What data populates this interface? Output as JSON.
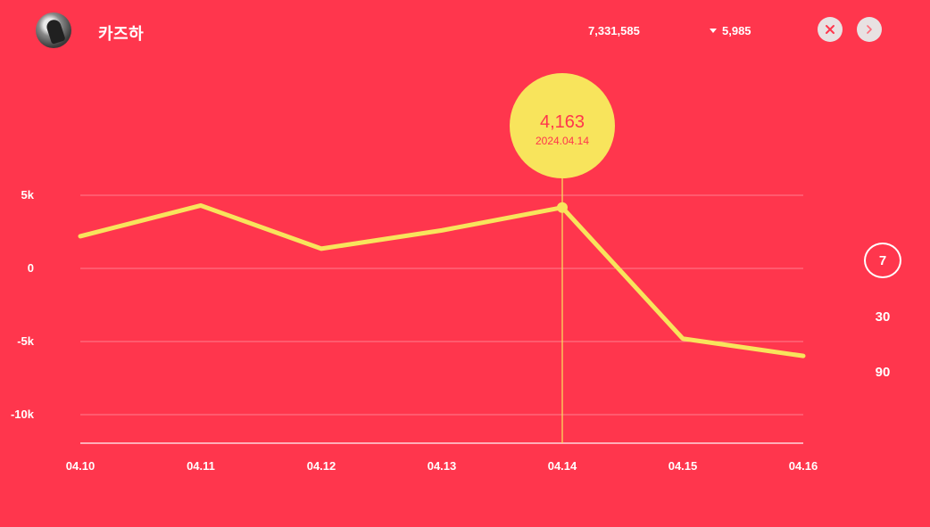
{
  "header": {
    "name": "카즈하",
    "total": "7,331,585",
    "change": "5,985"
  },
  "controls": {
    "periods": [
      "7",
      "30",
      "90"
    ],
    "active_period": "7"
  },
  "tooltip": {
    "value": "4,163",
    "date": "2024.04.14"
  },
  "colors": {
    "background": "#ff364d",
    "line": "#f8e45c",
    "grid": "#ff7e8e"
  },
  "chart_data": {
    "type": "line",
    "title": "",
    "xlabel": "",
    "ylabel": "",
    "categories": [
      "04.10",
      "04.11",
      "04.12",
      "04.13",
      "04.14",
      "04.15",
      "04.16"
    ],
    "values": [
      2200,
      4300,
      1350,
      2600,
      4163,
      -4800,
      -5985
    ],
    "ylim": [
      -12000,
      12000
    ],
    "yticks": [
      5000,
      0,
      -5000,
      -10000
    ],
    "ytick_labels": [
      "5k",
      "0",
      "-5k",
      "-10k"
    ],
    "highlight_index": 4,
    "grid": true
  }
}
